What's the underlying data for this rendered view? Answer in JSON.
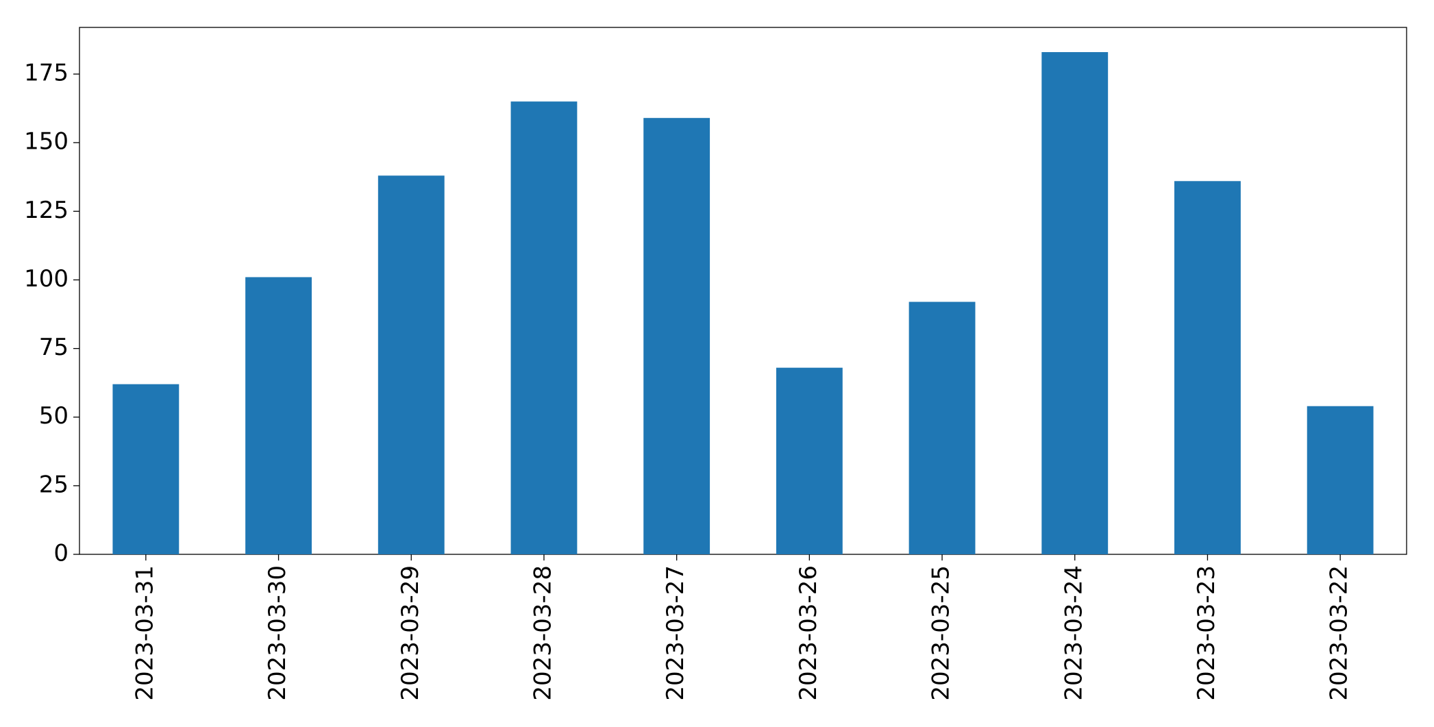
{
  "chart_data": {
    "type": "bar",
    "categories": [
      "2023-03-31",
      "2023-03-30",
      "2023-03-29",
      "2023-03-28",
      "2023-03-27",
      "2023-03-26",
      "2023-03-25",
      "2023-03-24",
      "2023-03-23",
      "2023-03-22"
    ],
    "values": [
      62,
      101,
      138,
      165,
      159,
      68,
      92,
      183,
      136,
      54
    ],
    "color": "#1f77b4",
    "ylim": [
      0,
      192
    ],
    "yticks": [
      0,
      25,
      50,
      75,
      100,
      125,
      150,
      175
    ],
    "grid": false
  }
}
